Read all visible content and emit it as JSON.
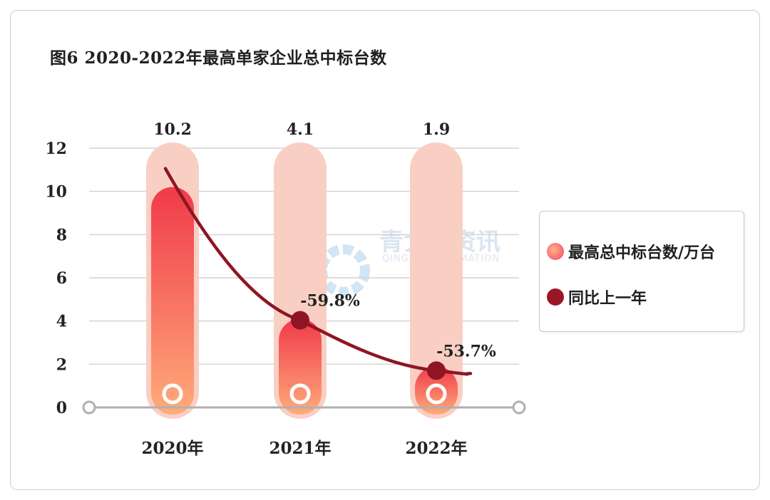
{
  "title": "图6 2020-2022年最高单家企业总中标台数",
  "watermark": {
    "name": "青戈尔资讯",
    "sub": "QINGAR INFORMATION"
  },
  "legend": {
    "bar_label": "最高总中标台数/万台",
    "line_label": "同比上一年"
  },
  "colors": {
    "bar_top": "#f4424f",
    "bar_bottom": "#ffa978",
    "track": "#f9cfc4",
    "line": "#8e1524"
  },
  "chart_data": {
    "type": "bar",
    "categories": [
      "2020年",
      "2021年",
      "2022年"
    ],
    "series": [
      {
        "name": "最高总中标台数/万台",
        "type": "bar",
        "values": [
          10.2,
          4.1,
          1.9
        ],
        "value_labels": [
          "10.2",
          "4.1",
          "1.9"
        ]
      },
      {
        "name": "同比上一年",
        "type": "line",
        "values": [
          null,
          -59.8,
          -53.7
        ],
        "value_labels": [
          "",
          "-59.8%",
          "-53.7%"
        ]
      }
    ],
    "yticks": [
      "0",
      "2",
      "4",
      "6",
      "8",
      "10",
      "12"
    ],
    "ylim": [
      0,
      12
    ],
    "legend_position": "right",
    "grid": true
  }
}
